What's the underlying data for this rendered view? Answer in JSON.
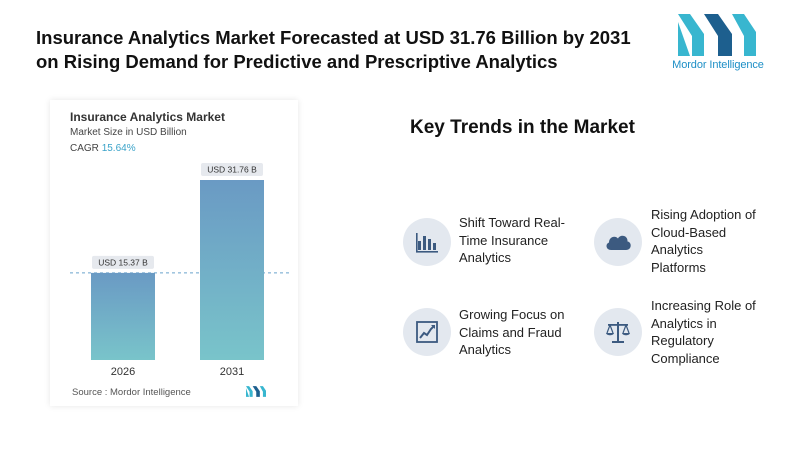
{
  "headline": "Insurance Analytics Market Forecasted at USD 31.76 Billion by 2031 on Rising Demand for Predictive and Prescriptive Analytics",
  "logo": {
    "brand": "Mordor",
    "suffix": "Intelligence",
    "colors": [
      "#38b6cf",
      "#1d5f8e"
    ]
  },
  "chart": {
    "title": "Insurance Analytics Market",
    "subtitle": "Market Size in USD Billion",
    "cagr_label": "CAGR",
    "cagr_value": "15.64%",
    "source": "Source : Mordor Intelligence"
  },
  "chart_data": {
    "type": "bar",
    "title": "Insurance Analytics Market",
    "ylabel": "Market Size in USD Billion",
    "categories": [
      "2026",
      "2031"
    ],
    "values": [
      15.37,
      31.76
    ],
    "data_labels": [
      "USD 15.37 B",
      "USD 31.76 B"
    ],
    "ylim": [
      0,
      31.76
    ],
    "grid": false,
    "reference_line": "dashed line at 2026 value",
    "bar_gradient": [
      "#6a9ac4",
      "#79c4ca"
    ]
  },
  "trends": {
    "title": "Key Trends in the Market",
    "items": [
      {
        "icon": "bar-chart-icon",
        "text": [
          "Shift Toward Real-",
          "Time Insurance",
          "Analytics"
        ]
      },
      {
        "icon": "cloud-icon",
        "text": [
          "Rising Adoption of",
          "Cloud-Based",
          "Analytics",
          "Platforms"
        ]
      },
      {
        "icon": "line-chart-icon",
        "text": [
          "Growing Focus on",
          "Claims and Fraud",
          "Analytics"
        ]
      },
      {
        "icon": "scales-icon",
        "text": [
          "Increasing Role of",
          "Analytics in",
          "Regulatory",
          "Compliance"
        ]
      }
    ]
  }
}
